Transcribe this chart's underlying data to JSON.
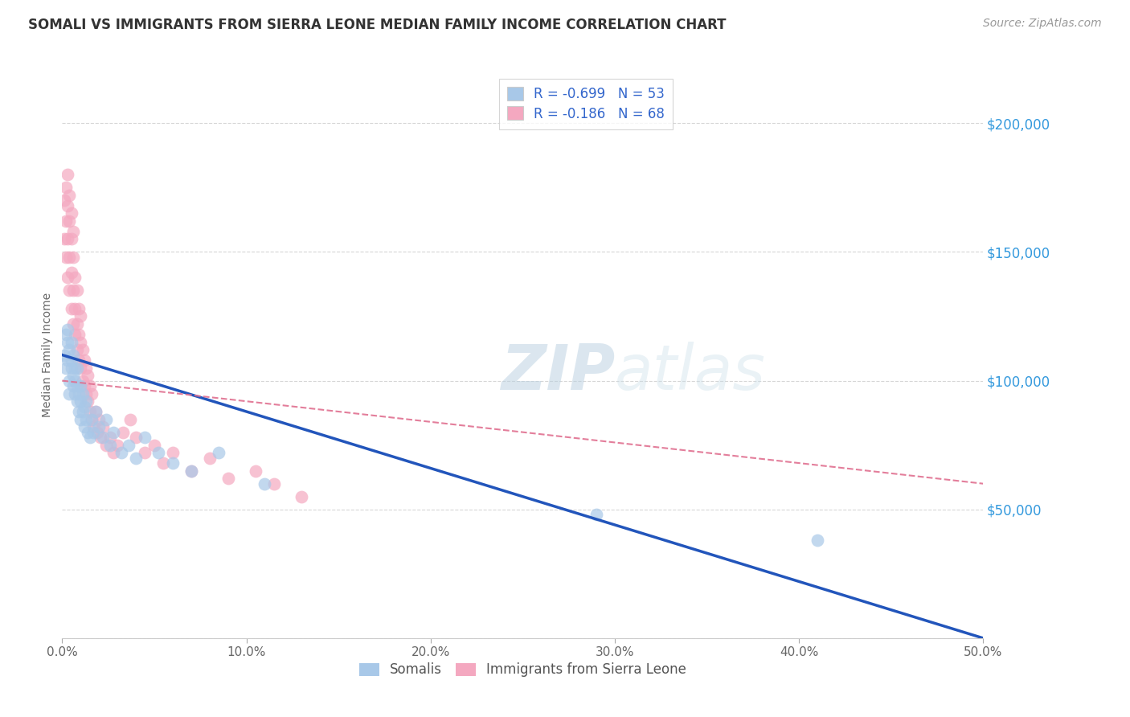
{
  "title": "SOMALI VS IMMIGRANTS FROM SIERRA LEONE MEDIAN FAMILY INCOME CORRELATION CHART",
  "source_text": "Source: ZipAtlas.com",
  "ylabel": "Median Family Income",
  "xlim": [
    0.0,
    0.5
  ],
  "ylim": [
    0,
    220000
  ],
  "yticks": [
    0,
    50000,
    100000,
    150000,
    200000
  ],
  "ytick_labels": [
    "",
    "$50,000",
    "$100,000",
    "$150,000",
    "$200,000"
  ],
  "xticks": [
    0.0,
    0.1,
    0.2,
    0.3,
    0.4,
    0.5
  ],
  "xtick_labels": [
    "0.0%",
    "10.0%",
    "20.0%",
    "30.0%",
    "40.0%",
    "50.0%"
  ],
  "background_color": "#ffffff",
  "grid_color": "#cccccc",
  "somali_color": "#a8c8e8",
  "sierra_leone_color": "#f4a8c0",
  "somali_line_color": "#2255bb",
  "sierra_leone_line_color": "#e07090",
  "legend_r_somali": "R = -0.699",
  "legend_n_somali": "N = 53",
  "legend_r_sierra": "R = -0.186",
  "legend_n_sierra": "N = 68",
  "legend_label_somali": "Somalis",
  "legend_label_sierra": "Immigrants from Sierra Leone",
  "legend_text_color": "#3366cc",
  "title_color": "#333333",
  "axis_label_color": "#666666",
  "ytick_color": "#3399dd",
  "xtick_color": "#666666",
  "somali_x": [
    0.001,
    0.002,
    0.002,
    0.003,
    0.003,
    0.003,
    0.004,
    0.004,
    0.004,
    0.005,
    0.005,
    0.005,
    0.006,
    0.006,
    0.006,
    0.007,
    0.007,
    0.007,
    0.008,
    0.008,
    0.008,
    0.009,
    0.009,
    0.01,
    0.01,
    0.01,
    0.011,
    0.011,
    0.012,
    0.012,
    0.013,
    0.013,
    0.014,
    0.015,
    0.016,
    0.017,
    0.018,
    0.02,
    0.022,
    0.024,
    0.026,
    0.028,
    0.032,
    0.036,
    0.04,
    0.045,
    0.052,
    0.06,
    0.07,
    0.085,
    0.11,
    0.29,
    0.41
  ],
  "somali_y": [
    110000,
    105000,
    118000,
    108000,
    115000,
    120000,
    100000,
    112000,
    95000,
    105000,
    108000,
    115000,
    98000,
    102000,
    110000,
    95000,
    100000,
    105000,
    92000,
    98000,
    105000,
    88000,
    95000,
    85000,
    92000,
    98000,
    88000,
    95000,
    82000,
    90000,
    85000,
    92000,
    80000,
    78000,
    85000,
    80000,
    88000,
    82000,
    78000,
    85000,
    75000,
    80000,
    72000,
    75000,
    70000,
    78000,
    72000,
    68000,
    65000,
    72000,
    60000,
    48000,
    38000
  ],
  "sierra_x": [
    0.001,
    0.001,
    0.002,
    0.002,
    0.002,
    0.003,
    0.003,
    0.003,
    0.003,
    0.004,
    0.004,
    0.004,
    0.004,
    0.005,
    0.005,
    0.005,
    0.005,
    0.006,
    0.006,
    0.006,
    0.006,
    0.007,
    0.007,
    0.007,
    0.008,
    0.008,
    0.008,
    0.009,
    0.009,
    0.009,
    0.01,
    0.01,
    0.01,
    0.011,
    0.011,
    0.012,
    0.012,
    0.013,
    0.013,
    0.014,
    0.014,
    0.015,
    0.015,
    0.016,
    0.016,
    0.017,
    0.018,
    0.019,
    0.02,
    0.021,
    0.022,
    0.024,
    0.026,
    0.028,
    0.03,
    0.033,
    0.037,
    0.04,
    0.045,
    0.05,
    0.055,
    0.06,
    0.07,
    0.08,
    0.09,
    0.105,
    0.115,
    0.13
  ],
  "sierra_y": [
    155000,
    170000,
    148000,
    162000,
    175000,
    140000,
    155000,
    168000,
    180000,
    135000,
    148000,
    162000,
    172000,
    128000,
    142000,
    155000,
    165000,
    122000,
    135000,
    148000,
    158000,
    118000,
    128000,
    140000,
    112000,
    122000,
    135000,
    108000,
    118000,
    128000,
    105000,
    115000,
    125000,
    100000,
    112000,
    98000,
    108000,
    95000,
    105000,
    92000,
    102000,
    88000,
    98000,
    85000,
    95000,
    82000,
    88000,
    80000,
    85000,
    78000,
    82000,
    75000,
    78000,
    72000,
    75000,
    80000,
    85000,
    78000,
    72000,
    75000,
    68000,
    72000,
    65000,
    70000,
    62000,
    65000,
    60000,
    55000
  ]
}
